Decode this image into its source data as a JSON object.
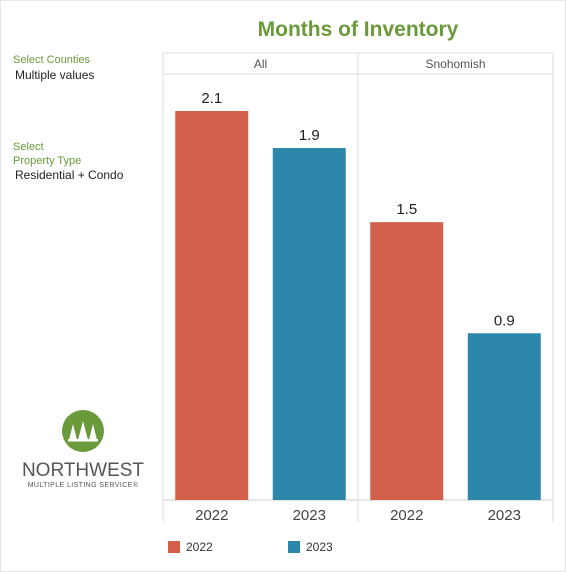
{
  "filters": {
    "counties_label": "Select Counties",
    "counties_value": "Multiple values",
    "property_label_line1": "Select",
    "property_label_line2": "Property Type",
    "property_value": "Residential + Condo"
  },
  "logo": {
    "name": "NORTHWEST",
    "tagline": "MULTIPLE LISTING SERVICE®"
  },
  "colors": {
    "y2022": "#d2604a",
    "y2023": "#2d87aa",
    "title": "#6a9a3a"
  },
  "chart_data": {
    "type": "bar",
    "title": "Months of Inventory",
    "panels": [
      "All",
      "Snohomish"
    ],
    "categories": [
      "2022",
      "2023"
    ],
    "series": [
      {
        "name": "2022",
        "values": [
          2.1,
          1.5
        ]
      },
      {
        "name": "2023",
        "values": [
          1.9,
          0.9
        ]
      }
    ],
    "data_labels": [
      [
        "2.1",
        "1.9"
      ],
      [
        "1.5",
        "0.9"
      ]
    ],
    "ylim": [
      0,
      2.1
    ],
    "grid": false,
    "legend": "bottom"
  }
}
